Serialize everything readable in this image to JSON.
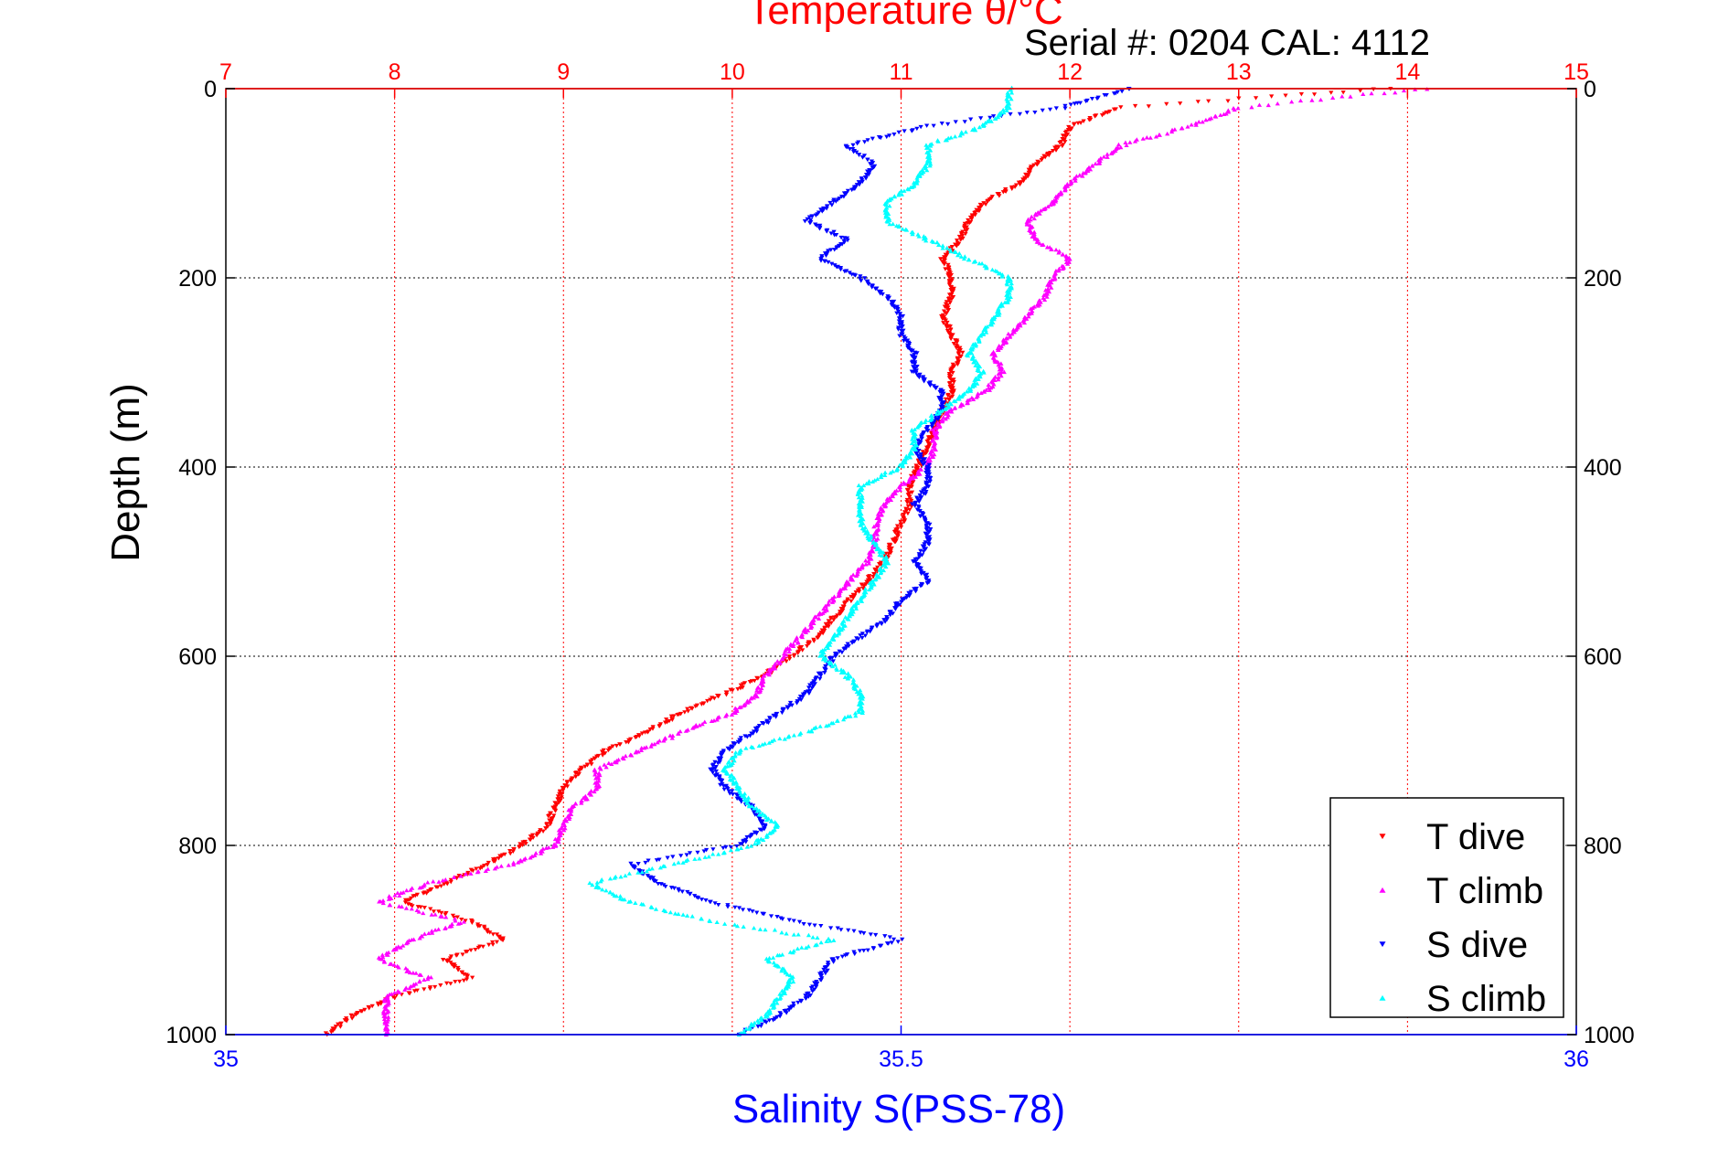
{
  "chart_data": {
    "type": "scatter",
    "title": "Temperature θ/°C",
    "subtitle": "Serial #: 0204  CAL: 4112",
    "ylabel": "Depth (m)",
    "xlabel": "Salinity S(PSS-78)",
    "y_reversed": true,
    "ylim": [
      0,
      1000
    ],
    "yticks": [
      "0",
      "200",
      "400",
      "600",
      "800",
      "1000"
    ],
    "temperature_axis": {
      "position": "top",
      "range": [
        7,
        15
      ],
      "ticks": [
        "7",
        "8",
        "9",
        "10",
        "11",
        "12",
        "13",
        "14",
        "15"
      ]
    },
    "salinity_axis": {
      "position": "bottom",
      "range": [
        35,
        36
      ],
      "ticks": [
        "35",
        "35.5",
        "36"
      ]
    },
    "grid": "dotted",
    "legend_position": "bottom-right",
    "series": [
      {
        "name": "T dive",
        "axis": "temperature",
        "color": "#ff0000",
        "marker": "triangle-down",
        "points": [
          [
            0,
            13.9
          ],
          [
            20,
            12.3
          ],
          [
            40,
            12.0
          ],
          [
            60,
            11.95
          ],
          [
            80,
            11.8
          ],
          [
            100,
            11.7
          ],
          [
            120,
            11.5
          ],
          [
            140,
            11.4
          ],
          [
            160,
            11.35
          ],
          [
            180,
            11.25
          ],
          [
            200,
            11.3
          ],
          [
            220,
            11.3
          ],
          [
            240,
            11.25
          ],
          [
            260,
            11.3
          ],
          [
            280,
            11.35
          ],
          [
            300,
            11.3
          ],
          [
            320,
            11.3
          ],
          [
            340,
            11.25
          ],
          [
            360,
            11.2
          ],
          [
            380,
            11.15
          ],
          [
            400,
            11.1
          ],
          [
            420,
            11.05
          ],
          [
            440,
            11.05
          ],
          [
            460,
            11.0
          ],
          [
            480,
            10.95
          ],
          [
            500,
            10.9
          ],
          [
            520,
            10.8
          ],
          [
            540,
            10.7
          ],
          [
            560,
            10.6
          ],
          [
            580,
            10.5
          ],
          [
            600,
            10.35
          ],
          [
            620,
            10.2
          ],
          [
            640,
            9.95
          ],
          [
            660,
            9.7
          ],
          [
            680,
            9.5
          ],
          [
            700,
            9.25
          ],
          [
            720,
            9.1
          ],
          [
            740,
            9.0
          ],
          [
            760,
            8.95
          ],
          [
            780,
            8.9
          ],
          [
            800,
            8.75
          ],
          [
            820,
            8.55
          ],
          [
            840,
            8.3
          ],
          [
            860,
            8.05
          ],
          [
            880,
            8.45
          ],
          [
            900,
            8.65
          ],
          [
            920,
            8.3
          ],
          [
            940,
            8.45
          ],
          [
            960,
            8.0
          ],
          [
            980,
            7.75
          ],
          [
            1000,
            7.6
          ]
        ]
      },
      {
        "name": "T climb",
        "axis": "temperature",
        "color": "#ff00ff",
        "marker": "triangle-up",
        "points": [
          [
            0,
            14.1
          ],
          [
            20,
            13.0
          ],
          [
            40,
            12.7
          ],
          [
            60,
            12.3
          ],
          [
            80,
            12.15
          ],
          [
            100,
            12.0
          ],
          [
            120,
            11.9
          ],
          [
            140,
            11.75
          ],
          [
            160,
            11.8
          ],
          [
            180,
            12.0
          ],
          [
            200,
            11.9
          ],
          [
            220,
            11.85
          ],
          [
            240,
            11.75
          ],
          [
            260,
            11.65
          ],
          [
            280,
            11.55
          ],
          [
            300,
            11.6
          ],
          [
            320,
            11.5
          ],
          [
            340,
            11.3
          ],
          [
            360,
            11.2
          ],
          [
            380,
            11.2
          ],
          [
            400,
            11.15
          ],
          [
            420,
            11.0
          ],
          [
            440,
            10.9
          ],
          [
            460,
            10.85
          ],
          [
            480,
            10.85
          ],
          [
            500,
            10.8
          ],
          [
            520,
            10.7
          ],
          [
            540,
            10.6
          ],
          [
            560,
            10.5
          ],
          [
            580,
            10.4
          ],
          [
            600,
            10.3
          ],
          [
            620,
            10.2
          ],
          [
            640,
            10.15
          ],
          [
            660,
            10.0
          ],
          [
            680,
            9.7
          ],
          [
            700,
            9.45
          ],
          [
            720,
            9.2
          ],
          [
            740,
            9.2
          ],
          [
            760,
            9.05
          ],
          [
            780,
            9.0
          ],
          [
            800,
            8.95
          ],
          [
            820,
            8.7
          ],
          [
            840,
            8.2
          ],
          [
            860,
            7.9
          ],
          [
            880,
            8.4
          ],
          [
            900,
            8.1
          ],
          [
            920,
            7.9
          ],
          [
            940,
            8.2
          ],
          [
            960,
            7.95
          ],
          [
            980,
            7.95
          ],
          [
            1000,
            7.95
          ]
        ]
      },
      {
        "name": "S dive",
        "axis": "salinity",
        "color": "#0000ff",
        "marker": "triangle-down",
        "points": [
          [
            0,
            35.67
          ],
          [
            20,
            35.62
          ],
          [
            40,
            35.52
          ],
          [
            60,
            35.46
          ],
          [
            80,
            35.48
          ],
          [
            100,
            35.47
          ],
          [
            120,
            35.45
          ],
          [
            140,
            35.43
          ],
          [
            160,
            35.46
          ],
          [
            180,
            35.44
          ],
          [
            200,
            35.47
          ],
          [
            220,
            35.49
          ],
          [
            240,
            35.5
          ],
          [
            260,
            35.5
          ],
          [
            280,
            35.51
          ],
          [
            300,
            35.51
          ],
          [
            320,
            35.53
          ],
          [
            340,
            35.53
          ],
          [
            360,
            35.52
          ],
          [
            380,
            35.51
          ],
          [
            400,
            35.52
          ],
          [
            420,
            35.52
          ],
          [
            440,
            35.51
          ],
          [
            460,
            35.52
          ],
          [
            480,
            35.52
          ],
          [
            500,
            35.51
          ],
          [
            520,
            35.52
          ],
          [
            540,
            35.5
          ],
          [
            560,
            35.49
          ],
          [
            580,
            35.47
          ],
          [
            600,
            35.45
          ],
          [
            620,
            35.44
          ],
          [
            640,
            35.43
          ],
          [
            660,
            35.41
          ],
          [
            680,
            35.39
          ],
          [
            700,
            35.37
          ],
          [
            720,
            35.36
          ],
          [
            740,
            35.37
          ],
          [
            760,
            35.39
          ],
          [
            780,
            35.4
          ],
          [
            800,
            35.38
          ],
          [
            820,
            35.3
          ],
          [
            840,
            35.32
          ],
          [
            860,
            35.36
          ],
          [
            880,
            35.42
          ],
          [
            900,
            35.5
          ],
          [
            920,
            35.45
          ],
          [
            940,
            35.44
          ],
          [
            960,
            35.43
          ],
          [
            980,
            35.41
          ],
          [
            1000,
            35.38
          ]
        ]
      },
      {
        "name": "S climb",
        "axis": "salinity",
        "color": "#00ffff",
        "marker": "triangle-up",
        "points": [
          [
            0,
            35.58
          ],
          [
            20,
            35.58
          ],
          [
            40,
            35.56
          ],
          [
            60,
            35.52
          ],
          [
            80,
            35.52
          ],
          [
            100,
            35.51
          ],
          [
            120,
            35.49
          ],
          [
            140,
            35.49
          ],
          [
            160,
            35.52
          ],
          [
            180,
            35.55
          ],
          [
            200,
            35.58
          ],
          [
            220,
            35.58
          ],
          [
            240,
            35.57
          ],
          [
            260,
            35.56
          ],
          [
            280,
            35.55
          ],
          [
            300,
            35.56
          ],
          [
            320,
            35.55
          ],
          [
            340,
            35.53
          ],
          [
            360,
            35.51
          ],
          [
            380,
            35.51
          ],
          [
            400,
            35.5
          ],
          [
            420,
            35.47
          ],
          [
            440,
            35.47
          ],
          [
            460,
            35.47
          ],
          [
            480,
            35.48
          ],
          [
            500,
            35.49
          ],
          [
            520,
            35.48
          ],
          [
            540,
            35.47
          ],
          [
            560,
            35.46
          ],
          [
            580,
            35.45
          ],
          [
            600,
            35.44
          ],
          [
            620,
            35.46
          ],
          [
            640,
            35.47
          ],
          [
            660,
            35.47
          ],
          [
            680,
            35.43
          ],
          [
            700,
            35.38
          ],
          [
            720,
            35.37
          ],
          [
            740,
            35.38
          ],
          [
            760,
            35.39
          ],
          [
            780,
            35.41
          ],
          [
            800,
            35.39
          ],
          [
            820,
            35.33
          ],
          [
            840,
            35.27
          ],
          [
            860,
            35.3
          ],
          [
            880,
            35.36
          ],
          [
            900,
            35.45
          ],
          [
            920,
            35.4
          ],
          [
            940,
            35.42
          ],
          [
            960,
            35.41
          ],
          [
            980,
            35.4
          ],
          [
            1000,
            35.38
          ]
        ]
      }
    ]
  }
}
